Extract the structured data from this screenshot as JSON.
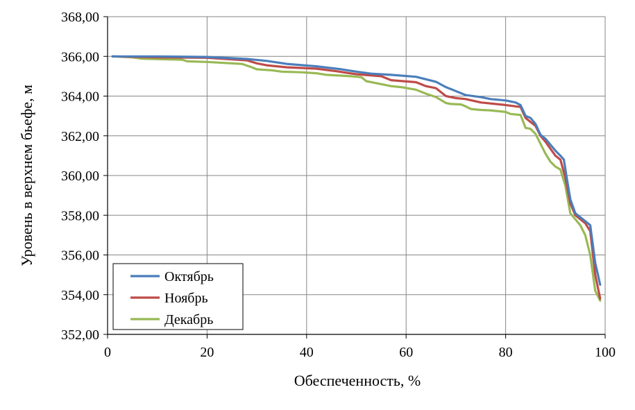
{
  "chart_data": {
    "type": "line",
    "title": "",
    "xlabel": "Обеспеченность, %",
    "ylabel": "Уровень в верхнем бьефе, м",
    "xlim": [
      0,
      100
    ],
    "ylim": [
      352,
      368
    ],
    "x_ticks": [
      "0",
      "20",
      "40",
      "60",
      "80",
      "100"
    ],
    "x_tick_values": [
      0,
      20,
      40,
      60,
      80,
      100
    ],
    "y_ticks": [
      "352,00",
      "354,00",
      "356,00",
      "358,00",
      "360,00",
      "362,00",
      "364,00",
      "366,00",
      "368,00"
    ],
    "y_tick_values": [
      352,
      354,
      356,
      358,
      360,
      362,
      364,
      366,
      368
    ],
    "grid": "vertical and horizontal",
    "legend_position": "bottom-left",
    "series": [
      {
        "name": "Октябрь",
        "color": "#4a7ebb",
        "points": [
          [
            1,
            366.0
          ],
          [
            10,
            366.0
          ],
          [
            20,
            365.97
          ],
          [
            28,
            365.87
          ],
          [
            32,
            365.77
          ],
          [
            36,
            365.62
          ],
          [
            42,
            365.5
          ],
          [
            47,
            365.35
          ],
          [
            50,
            365.23
          ],
          [
            53,
            365.13
          ],
          [
            57,
            365.07
          ],
          [
            62,
            364.97
          ],
          [
            66,
            364.72
          ],
          [
            68,
            364.45
          ],
          [
            70,
            364.25
          ],
          [
            72,
            364.05
          ],
          [
            75,
            363.95
          ],
          [
            77,
            363.85
          ],
          [
            80,
            363.78
          ],
          [
            82,
            363.68
          ],
          [
            83,
            363.55
          ],
          [
            84,
            363.0
          ],
          [
            85,
            362.9
          ],
          [
            86,
            362.6
          ],
          [
            87,
            362.05
          ],
          [
            88,
            361.85
          ],
          [
            90,
            361.25
          ],
          [
            91,
            361.0
          ],
          [
            91.7,
            360.8
          ],
          [
            92.2,
            360.0
          ],
          [
            93,
            358.8
          ],
          [
            94,
            358.1
          ],
          [
            96,
            357.7
          ],
          [
            97,
            357.5
          ],
          [
            98,
            355.6
          ],
          [
            99,
            354.5
          ]
        ]
      },
      {
        "name": "Ноябрь",
        "color": "#be4b48",
        "points": [
          [
            1,
            366.0
          ],
          [
            10,
            365.95
          ],
          [
            20,
            365.93
          ],
          [
            28,
            365.8
          ],
          [
            30,
            365.65
          ],
          [
            32,
            365.55
          ],
          [
            36,
            365.45
          ],
          [
            42,
            365.38
          ],
          [
            46,
            365.25
          ],
          [
            50,
            365.1
          ],
          [
            55,
            365.0
          ],
          [
            57,
            364.8
          ],
          [
            62,
            364.7
          ],
          [
            64,
            364.5
          ],
          [
            66,
            364.4
          ],
          [
            68,
            364.0
          ],
          [
            70,
            363.9
          ],
          [
            72,
            363.85
          ],
          [
            75,
            363.68
          ],
          [
            80,
            363.55
          ],
          [
            83,
            363.45
          ],
          [
            84,
            362.9
          ],
          [
            85,
            362.7
          ],
          [
            86,
            362.5
          ],
          [
            87,
            362.0
          ],
          [
            88,
            361.7
          ],
          [
            90,
            361.0
          ],
          [
            91,
            360.8
          ],
          [
            92,
            359.9
          ],
          [
            93,
            358.6
          ],
          [
            94,
            358.0
          ],
          [
            96,
            357.6
          ],
          [
            97,
            357.2
          ],
          [
            98,
            355.0
          ],
          [
            99,
            353.8
          ]
        ]
      },
      {
        "name": "Декабрь",
        "color": "#98b954",
        "points": [
          [
            1,
            366.0
          ],
          [
            5,
            365.95
          ],
          [
            7,
            365.88
          ],
          [
            15,
            365.83
          ],
          [
            16,
            365.75
          ],
          [
            20,
            365.72
          ],
          [
            27,
            365.62
          ],
          [
            29,
            365.45
          ],
          [
            30,
            365.35
          ],
          [
            33,
            365.3
          ],
          [
            35,
            365.23
          ],
          [
            39,
            365.2
          ],
          [
            42,
            365.15
          ],
          [
            44,
            365.07
          ],
          [
            49,
            365.0
          ],
          [
            51,
            364.95
          ],
          [
            52,
            364.75
          ],
          [
            55,
            364.6
          ],
          [
            57,
            364.5
          ],
          [
            59,
            364.45
          ],
          [
            62,
            364.32
          ],
          [
            64,
            364.12
          ],
          [
            66,
            363.95
          ],
          [
            68,
            363.65
          ],
          [
            69,
            363.6
          ],
          [
            71,
            363.58
          ],
          [
            72,
            363.48
          ],
          [
            73,
            363.35
          ],
          [
            75,
            363.3
          ],
          [
            77,
            363.28
          ],
          [
            80,
            363.2
          ],
          [
            81,
            363.1
          ],
          [
            83,
            363.05
          ],
          [
            84,
            362.4
          ],
          [
            85,
            362.35
          ],
          [
            86,
            362.1
          ],
          [
            87,
            361.6
          ],
          [
            88,
            361.1
          ],
          [
            89,
            360.7
          ],
          [
            90,
            360.45
          ],
          [
            91,
            360.3
          ],
          [
            92,
            359.5
          ],
          [
            92.5,
            358.8
          ],
          [
            93,
            358.1
          ],
          [
            94,
            357.8
          ],
          [
            95,
            357.5
          ],
          [
            96,
            357.0
          ],
          [
            97,
            356.0
          ],
          [
            98,
            354.2
          ],
          [
            99,
            353.7
          ]
        ]
      }
    ]
  }
}
